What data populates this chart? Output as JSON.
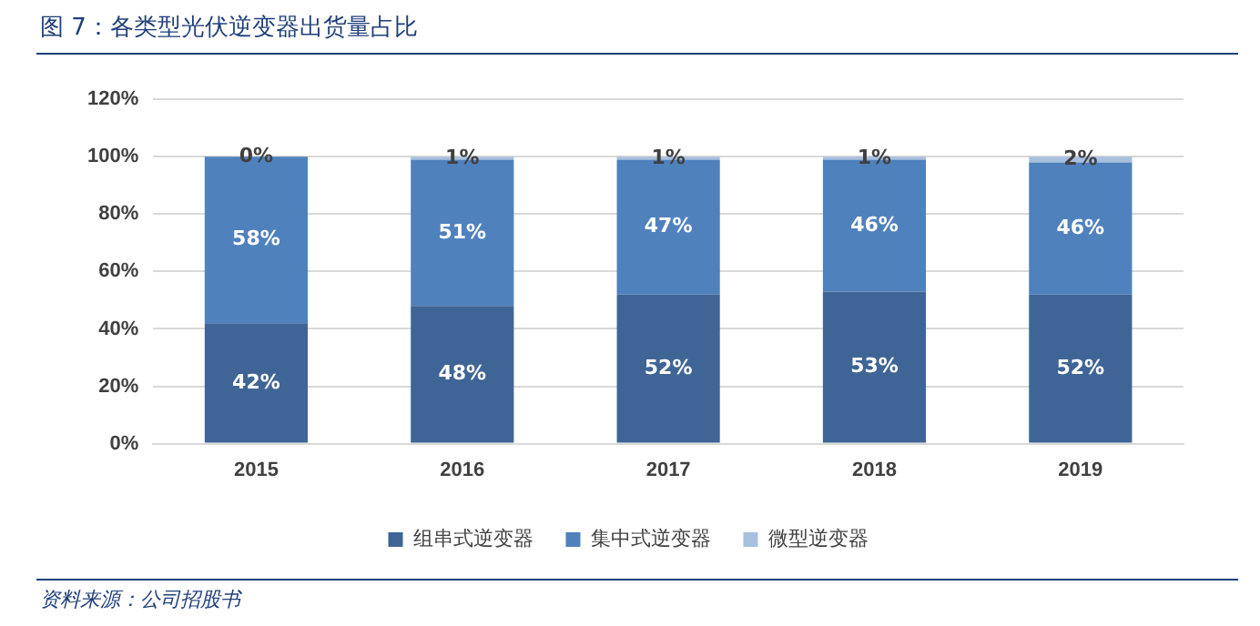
{
  "chart_data": {
    "type": "bar",
    "title": "图 7：各类型光伏逆变器出货量占比",
    "categories": [
      "2015",
      "2016",
      "2017",
      "2018",
      "2019"
    ],
    "stacked": true,
    "series": [
      {
        "name": "组串式逆变器",
        "color": "#3f6596",
        "values": [
          42,
          48,
          52,
          53,
          52
        ],
        "value_labels": [
          "42%",
          "48%",
          "52%",
          "53%",
          "52%"
        ]
      },
      {
        "name": "集中式逆变器",
        "color": "#4f81bd",
        "values": [
          58,
          51,
          47,
          46,
          46
        ],
        "value_labels": [
          "58%",
          "51%",
          "47%",
          "46%",
          "46%"
        ]
      },
      {
        "name": "微型逆变器",
        "color": "#a9bfde",
        "values": [
          0,
          1,
          1,
          1,
          2
        ],
        "value_labels": [
          "0%",
          "1%",
          "1%",
          "1%",
          "2%"
        ]
      }
    ],
    "ylim": [
      0,
      120
    ],
    "yticks": [
      {
        "value": 0,
        "label": "0%"
      },
      {
        "value": 20,
        "label": "20%"
      },
      {
        "value": 40,
        "label": "40%"
      },
      {
        "value": 60,
        "label": "60%"
      },
      {
        "value": 80,
        "label": "80%"
      },
      {
        "value": 100,
        "label": "100%"
      },
      {
        "value": 120,
        "label": "120%"
      }
    ],
    "grid": "y",
    "legend": "bottom",
    "annotations": [
      "资料来源：公司招股书"
    ]
  }
}
